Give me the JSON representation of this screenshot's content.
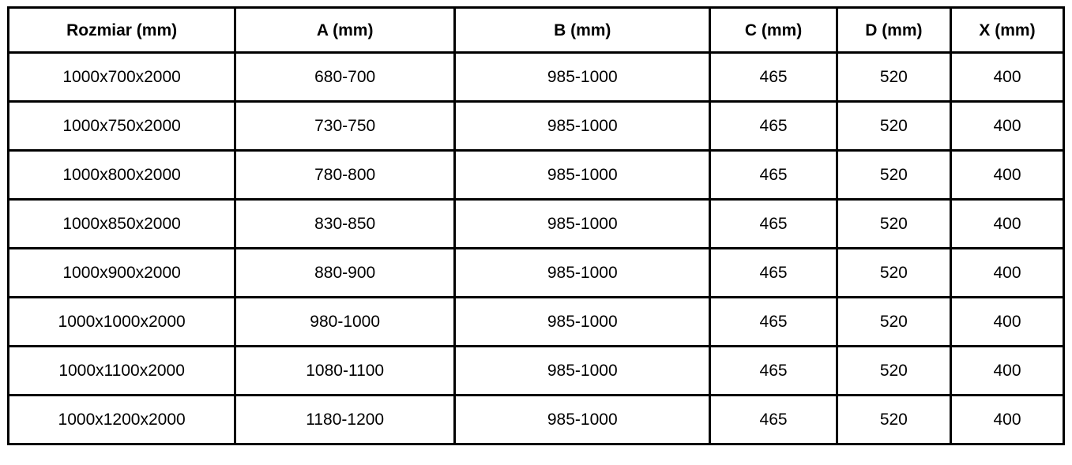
{
  "table": {
    "columns": [
      {
        "key": "rozmiar",
        "label": "Rozmiar (mm)"
      },
      {
        "key": "a",
        "label": "A (mm)"
      },
      {
        "key": "b",
        "label": "B (mm)"
      },
      {
        "key": "c",
        "label": "C (mm)"
      },
      {
        "key": "d",
        "label": "D (mm)"
      },
      {
        "key": "x",
        "label": "X (mm)"
      }
    ],
    "rows": [
      [
        "1000x700x2000",
        "680-700",
        "985-1000",
        "465",
        "520",
        "400"
      ],
      [
        "1000x750x2000",
        "730-750",
        "985-1000",
        "465",
        "520",
        "400"
      ],
      [
        "1000x800x2000",
        "780-800",
        "985-1000",
        "465",
        "520",
        "400"
      ],
      [
        "1000x850x2000",
        "830-850",
        "985-1000",
        "465",
        "520",
        "400"
      ],
      [
        "1000x900x2000",
        "880-900",
        "985-1000",
        "465",
        "520",
        "400"
      ],
      [
        "1000x1000x2000",
        "980-1000",
        "985-1000",
        "465",
        "520",
        "400"
      ],
      [
        "1000x1100x2000",
        "1080-1100",
        "985-1000",
        "465",
        "520",
        "400"
      ],
      [
        "1000x1200x2000",
        "1180-1200",
        "985-1000",
        "465",
        "520",
        "400"
      ]
    ],
    "colors": {
      "border": "#000000",
      "text": "#000000",
      "background": "#ffffff"
    }
  }
}
